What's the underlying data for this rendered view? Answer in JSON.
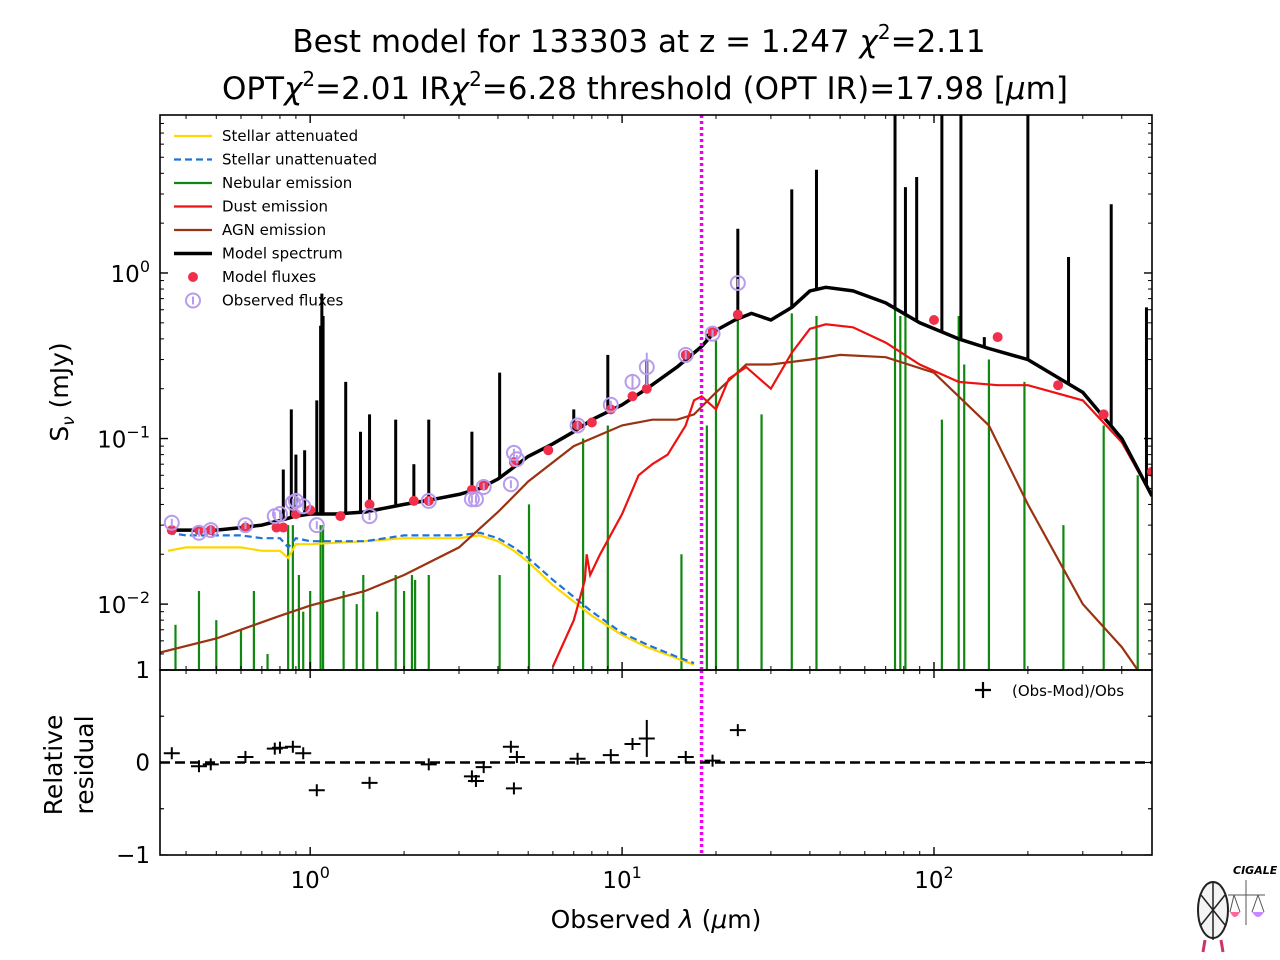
{
  "chart_data": {
    "type": "line",
    "title": {
      "line1_pre": "Best model for 133303 at z = 1.247 ",
      "line1_chi": "χ",
      "line1_sup": "2",
      "line1_post": "=2.11",
      "line2_a": "OPT",
      "line2_chi1": "χ",
      "line2_sup1": "2",
      "line2_b": "=2.01 IR",
      "line2_chi2": "χ",
      "line2_sup2": "2",
      "line2_c": "=6.28 threshold (OPT IR)=17.98  [",
      "line2_mu": "μ",
      "line2_d": "m]"
    },
    "xlabel": {
      "pre": "Observed ",
      "lam": "λ",
      "mid": " (",
      "mu": "μ",
      "post": "m)"
    },
    "ylabel_top": {
      "s": "S",
      "nu": "ν",
      "unit": " (mJy)"
    },
    "ylabel_bottom": [
      "Relative",
      "residual"
    ],
    "xscale": "log",
    "xlim": [
      0.33,
      500
    ],
    "ylim_top": [
      0.004,
      9
    ],
    "yscale_top": "log",
    "ylim_bottom": [
      -1,
      1
    ],
    "threshold_um": 17.98,
    "x_ticks": [
      {
        "base": "10",
        "exp": "0",
        "value": 1
      },
      {
        "base": "10",
        "exp": "1",
        "value": 10
      },
      {
        "base": "10",
        "exp": "2",
        "value": 100
      }
    ],
    "y_ticks_top": [
      {
        "base": "10",
        "exp": "−2",
        "value": 0.01
      },
      {
        "base": "10",
        "exp": "−1",
        "value": 0.1
      },
      {
        "base": "10",
        "exp": "0",
        "value": 1
      }
    ],
    "y_ticks_bottom": [
      {
        "label": "1",
        "value": 1
      },
      {
        "label": "0",
        "value": 0
      },
      {
        "label": "−1",
        "value": -1
      }
    ],
    "legend": [
      {
        "label": "Stellar attenuated",
        "color": "#FFD700",
        "style": "line"
      },
      {
        "label": "Stellar unattenuated",
        "color": "#1E73D8",
        "style": "dashed"
      },
      {
        "label": "Nebular emission",
        "color": "#108810",
        "style": "line"
      },
      {
        "label": "Dust emission",
        "color": "#EE1111",
        "style": "line"
      },
      {
        "label": "AGN emission",
        "color": "#993311",
        "style": "line"
      },
      {
        "label": "Model spectrum",
        "color": "#000000",
        "style": "thick"
      },
      {
        "label": "Model fluxes",
        "color": "#F0304A",
        "style": "dot"
      },
      {
        "label": "Observed fluxes",
        "color": "#B79BEE",
        "style": "circle"
      }
    ],
    "residual_legend": "(Obs-Mod)/Obs",
    "series": [
      {
        "name": "Model spectrum",
        "color": "#000000",
        "x": [
          0.35,
          0.4,
          0.5,
          0.6,
          0.7,
          0.8,
          0.9,
          1.0,
          1.2,
          1.5,
          2.0,
          2.5,
          3.0,
          3.5,
          4.0,
          5.0,
          6.0,
          7.0,
          8.0,
          10.0,
          12.0,
          15.0,
          18.0,
          20.0,
          23.0,
          26.0,
          30.0,
          35.0,
          40.0,
          45.0,
          55.0,
          70.0,
          90.0,
          120.0,
          150.0,
          200.0,
          300.0,
          400.0,
          500.0
        ],
        "y": [
          0.028,
          0.028,
          0.028,
          0.029,
          0.03,
          0.032,
          0.034,
          0.035,
          0.035,
          0.036,
          0.04,
          0.043,
          0.046,
          0.05,
          0.057,
          0.078,
          0.093,
          0.11,
          0.13,
          0.16,
          0.2,
          0.27,
          0.36,
          0.45,
          0.52,
          0.57,
          0.52,
          0.62,
          0.78,
          0.82,
          0.78,
          0.66,
          0.5,
          0.4,
          0.35,
          0.3,
          0.19,
          0.1,
          0.045
        ]
      },
      {
        "name": "Stellar attenuated",
        "color": "#FFD700",
        "x": [
          0.35,
          0.4,
          0.5,
          0.6,
          0.7,
          0.8,
          0.85,
          0.9,
          1.0,
          1.5,
          2.0,
          2.5,
          3.0,
          3.5,
          4.0,
          4.5,
          5.0,
          6.0,
          8.0,
          10.0,
          12.0,
          15.0,
          17.0
        ],
        "y": [
          0.021,
          0.022,
          0.022,
          0.022,
          0.021,
          0.021,
          0.019,
          0.023,
          0.023,
          0.024,
          0.025,
          0.025,
          0.025,
          0.026,
          0.024,
          0.021,
          0.018,
          0.013,
          0.0085,
          0.0065,
          0.0055,
          0.0047,
          0.0043
        ]
      },
      {
        "name": "Stellar unattenuated",
        "color": "#1E73D8",
        "x": [
          0.35,
          0.4,
          0.5,
          0.6,
          0.7,
          0.8,
          0.85,
          0.9,
          1.0,
          1.5,
          2.0,
          2.5,
          3.0,
          3.5,
          4.0,
          4.5,
          5.0,
          6.0,
          8.0,
          10.0,
          12.0,
          15.0,
          17.0
        ],
        "y": [
          0.027,
          0.026,
          0.026,
          0.026,
          0.025,
          0.025,
          0.022,
          0.025,
          0.024,
          0.024,
          0.026,
          0.026,
          0.026,
          0.027,
          0.025,
          0.022,
          0.019,
          0.014,
          0.009,
          0.0067,
          0.0057,
          0.0048,
          0.0044
        ]
      },
      {
        "name": "Dust emission",
        "color": "#EE1111",
        "x": [
          6.0,
          7.0,
          7.6,
          7.7,
          7.9,
          8.5,
          10.0,
          11.3,
          12.5,
          14.0,
          16.0,
          17.0,
          18.0,
          20.0,
          22.0,
          25.0,
          30.0,
          35.0,
          40.0,
          45.0,
          55.0,
          70.0,
          90.0,
          120.0,
          160.0,
          200.0,
          300.0,
          400.0,
          500.0
        ],
        "y": [
          0.0042,
          0.008,
          0.014,
          0.02,
          0.015,
          0.02,
          0.035,
          0.06,
          0.07,
          0.08,
          0.12,
          0.17,
          0.18,
          0.15,
          0.23,
          0.27,
          0.2,
          0.33,
          0.46,
          0.49,
          0.47,
          0.38,
          0.28,
          0.22,
          0.21,
          0.21,
          0.17,
          0.095,
          0.045
        ]
      },
      {
        "name": "AGN emission",
        "color": "#993311",
        "x": [
          0.33,
          0.5,
          0.8,
          1.0,
          1.5,
          2.0,
          3.0,
          4.0,
          5.0,
          7.0,
          10.0,
          12.5,
          15.0,
          17.0,
          20.0,
          25.0,
          30.0,
          40.0,
          50.0,
          70.0,
          100.0,
          150.0,
          200.0,
          300.0,
          400.0,
          450.0
        ],
        "y": [
          0.0051,
          0.0062,
          0.0085,
          0.0098,
          0.012,
          0.015,
          0.022,
          0.036,
          0.055,
          0.09,
          0.12,
          0.13,
          0.13,
          0.14,
          0.19,
          0.28,
          0.28,
          0.3,
          0.32,
          0.31,
          0.25,
          0.12,
          0.04,
          0.01,
          0.0055,
          0.004
        ]
      }
    ],
    "nebular_lines": [
      {
        "x": 0.37,
        "y": 0.0075
      },
      {
        "x": 0.44,
        "y": 0.012
      },
      {
        "x": 0.5,
        "y": 0.008
      },
      {
        "x": 0.6,
        "y": 0.007
      },
      {
        "x": 0.66,
        "y": 0.012
      },
      {
        "x": 0.73,
        "y": 0.005
      },
      {
        "x": 0.85,
        "y": 0.03
      },
      {
        "x": 0.88,
        "y": 0.03
      },
      {
        "x": 0.92,
        "y": 0.015
      },
      {
        "x": 0.95,
        "y": 0.009
      },
      {
        "x": 1.0,
        "y": 0.012
      },
      {
        "x": 1.08,
        "y": 0.03
      },
      {
        "x": 1.1,
        "y": 0.03
      },
      {
        "x": 1.28,
        "y": 0.012
      },
      {
        "x": 1.41,
        "y": 0.01
      },
      {
        "x": 1.48,
        "y": 0.015
      },
      {
        "x": 1.64,
        "y": 0.009
      },
      {
        "x": 1.88,
        "y": 0.015
      },
      {
        "x": 2.0,
        "y": 0.012
      },
      {
        "x": 2.12,
        "y": 0.015
      },
      {
        "x": 2.17,
        "y": 0.014
      },
      {
        "x": 2.4,
        "y": 0.015
      },
      {
        "x": 4.05,
        "y": 0.015
      },
      {
        "x": 5.03,
        "y": 0.04
      },
      {
        "x": 7.5,
        "y": 0.1
      },
      {
        "x": 9.0,
        "y": 0.12
      },
      {
        "x": 15.5,
        "y": 0.02
      },
      {
        "x": 18.7,
        "y": 0.12
      },
      {
        "x": 20.0,
        "y": 0.4
      },
      {
        "x": 23.5,
        "y": 0.55
      },
      {
        "x": 28.0,
        "y": 0.14
      },
      {
        "x": 35.0,
        "y": 0.57
      },
      {
        "x": 42.0,
        "y": 0.55
      },
      {
        "x": 75.0,
        "y": 0.65
      },
      {
        "x": 78.0,
        "y": 0.55
      },
      {
        "x": 81.0,
        "y": 0.65
      },
      {
        "x": 106.0,
        "y": 0.13
      },
      {
        "x": 120.0,
        "y": 0.55
      },
      {
        "x": 125.0,
        "y": 0.28
      },
      {
        "x": 150.0,
        "y": 0.3
      },
      {
        "x": 195.0,
        "y": 0.22
      },
      {
        "x": 260.0,
        "y": 0.03
      },
      {
        "x": 350.0,
        "y": 0.12
      },
      {
        "x": 450.0,
        "y": 0.06
      }
    ],
    "spectrum_spikes": [
      {
        "x": 0.82,
        "y": 0.065
      },
      {
        "x": 0.87,
        "y": 0.15
      },
      {
        "x": 0.9,
        "y": 0.08
      },
      {
        "x": 0.96,
        "y": 0.085
      },
      {
        "x": 1.05,
        "y": 0.17
      },
      {
        "x": 1.08,
        "y": 0.48
      },
      {
        "x": 1.09,
        "y": 0.75
      },
      {
        "x": 1.1,
        "y": 0.55
      },
      {
        "x": 1.3,
        "y": 0.22
      },
      {
        "x": 1.45,
        "y": 0.11
      },
      {
        "x": 1.55,
        "y": 0.14
      },
      {
        "x": 1.88,
        "y": 0.13
      },
      {
        "x": 2.15,
        "y": 0.07
      },
      {
        "x": 2.4,
        "y": 0.13
      },
      {
        "x": 3.3,
        "y": 0.11
      },
      {
        "x": 4.05,
        "y": 0.25
      },
      {
        "x": 4.65,
        "y": 0.07
      },
      {
        "x": 5.2,
        "y": 0.08
      },
      {
        "x": 7.0,
        "y": 0.15
      },
      {
        "x": 9.0,
        "y": 0.32
      },
      {
        "x": 12.0,
        "y": 0.3
      },
      {
        "x": 18.7,
        "y": 0.43
      },
      {
        "x": 23.5,
        "y": 1.85
      },
      {
        "x": 35.0,
        "y": 3.2
      },
      {
        "x": 42.0,
        "y": 4.2
      },
      {
        "x": 75.0,
        "y": 9.0
      },
      {
        "x": 81.0,
        "y": 3.3
      },
      {
        "x": 88.0,
        "y": 3.8
      },
      {
        "x": 106.0,
        "y": 9.0
      },
      {
        "x": 122.0,
        "y": 9.0
      },
      {
        "x": 145.0,
        "y": 0.41
      },
      {
        "x": 200.0,
        "y": 9.0
      },
      {
        "x": 270.0,
        "y": 1.25
      },
      {
        "x": 370.0,
        "y": 2.6
      },
      {
        "x": 480.0,
        "y": 0.62
      }
    ],
    "model_fluxes": {
      "x": [
        0.36,
        0.44,
        0.48,
        0.62,
        0.78,
        0.82,
        0.9,
        1.0,
        1.25,
        1.55,
        2.15,
        2.4,
        3.3,
        3.6,
        4.5,
        5.8,
        7.2,
        8.0,
        9.2,
        10.8,
        12.0,
        16.0,
        19.5,
        23.5,
        100.0,
        160.0,
        250.0,
        350.0,
        500.0
      ],
      "y": [
        0.028,
        0.028,
        0.028,
        0.029,
        0.029,
        0.029,
        0.035,
        0.037,
        0.034,
        0.04,
        0.042,
        0.042,
        0.049,
        0.052,
        0.072,
        0.085,
        0.12,
        0.125,
        0.15,
        0.18,
        0.2,
        0.32,
        0.44,
        0.56,
        0.52,
        0.41,
        0.21,
        0.14,
        0.063
      ]
    },
    "observed_fluxes": {
      "x": [
        0.36,
        0.44,
        0.48,
        0.62,
        0.77,
        0.8,
        0.88,
        0.9,
        0.95,
        1.05,
        1.55,
        2.4,
        3.3,
        3.4,
        3.6,
        4.4,
        4.5,
        4.6,
        7.2,
        9.2,
        10.8,
        12.0,
        16.0,
        19.5,
        23.5
      ],
      "y": [
        0.031,
        0.027,
        0.028,
        0.03,
        0.034,
        0.035,
        0.041,
        0.042,
        0.039,
        0.03,
        0.034,
        0.042,
        0.043,
        0.043,
        0.051,
        0.053,
        0.082,
        0.075,
        0.12,
        0.16,
        0.22,
        0.27,
        0.32,
        0.43,
        0.87
      ],
      "yerr": [
        0,
        0,
        0,
        0,
        0,
        0,
        0,
        0,
        0,
        0,
        0,
        0,
        0,
        0,
        0,
        0,
        0,
        0,
        0,
        0,
        0.02,
        0.06,
        0.02,
        0,
        0
      ]
    },
    "residuals": {
      "x": [
        0.36,
        0.44,
        0.48,
        0.62,
        0.77,
        0.8,
        0.88,
        0.95,
        1.05,
        1.55,
        2.4,
        3.3,
        3.4,
        3.6,
        4.4,
        4.5,
        4.6,
        7.2,
        9.2,
        10.8,
        12.0,
        16.0,
        19.5,
        23.5
      ],
      "y": [
        0.1,
        -0.04,
        -0.02,
        0.06,
        0.15,
        0.16,
        0.17,
        0.1,
        -0.3,
        -0.22,
        -0.02,
        -0.15,
        -0.2,
        -0.05,
        0.17,
        -0.28,
        0.06,
        0.04,
        0.08,
        0.2,
        0.26,
        0.06,
        0.02,
        0.35
      ],
      "yerr": [
        0,
        0,
        0,
        0,
        0,
        0,
        0,
        0,
        0,
        0,
        0,
        0,
        0,
        0,
        0,
        0,
        0,
        0,
        0,
        0,
        0.2,
        0,
        0,
        0
      ]
    }
  },
  "logo": {
    "text": "CIGALE"
  }
}
